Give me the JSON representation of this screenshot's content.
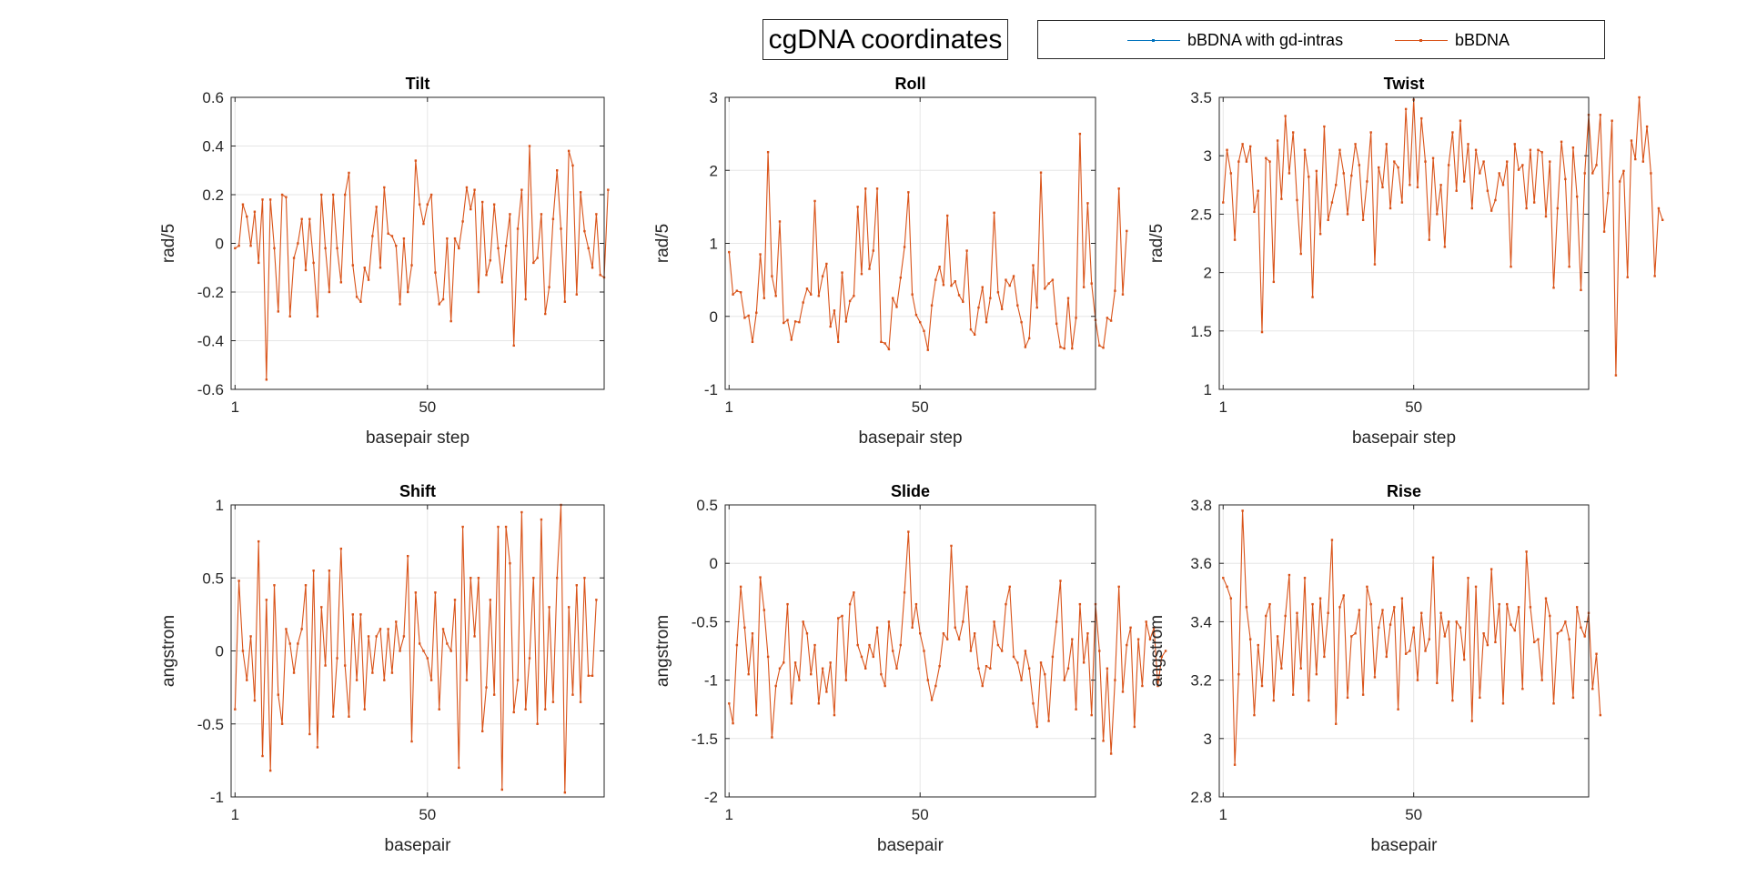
{
  "figure": {
    "title": "cgDNA coordinates",
    "legend": [
      {
        "label": "bBDNA with gd-intras",
        "color": "#0072bd"
      },
      {
        "label": "bBDNA",
        "color": "#d95319"
      }
    ]
  },
  "chart_data": [
    {
      "type": "line",
      "title": "Tilt",
      "xlabel": "basepair step",
      "ylabel": "rad/5",
      "xlim": [
        0,
        95
      ],
      "ylim": [
        -0.6,
        0.6
      ],
      "xticks": [
        1,
        50
      ],
      "yticks": [
        -0.6,
        -0.4,
        -0.2,
        0,
        0.2,
        0.4,
        0.6
      ],
      "ytick_labels": [
        "-0.6",
        "-0.4",
        "-0.2",
        "0",
        "0.2",
        "0.4",
        "0.6"
      ],
      "grid": true,
      "series": [
        {
          "name": "bBDNA",
          "color": "#d95319",
          "y": [
            -0.02,
            -0.01,
            0.16,
            0.11,
            -0.01,
            0.13,
            -0.08,
            0.18,
            -0.56,
            0.18,
            -0.02,
            -0.28,
            0.2,
            0.19,
            -0.3,
            -0.06,
            0,
            0.1,
            -0.11,
            0.1,
            -0.08,
            -0.3,
            0.2,
            -0.02,
            -0.2,
            0.2,
            -0.02,
            -0.16,
            0.2,
            0.29,
            -0.09,
            -0.22,
            -0.24,
            -0.1,
            -0.15,
            0.03,
            0.15,
            -0.1,
            0.23,
            0.04,
            0.03,
            -0.01,
            -0.25,
            0.02,
            -0.2,
            -0.09,
            0.34,
            0.16,
            0.08,
            0.16,
            0.2,
            -0.12,
            -0.25,
            -0.23,
            0.02,
            -0.32,
            0.02,
            -0.02,
            0.09,
            0.23,
            0.14,
            0.22,
            -0.2,
            0.17,
            -0.13,
            -0.07,
            0.16,
            -0.02,
            -0.16,
            -0.01,
            0.12,
            -0.42,
            0.06,
            0.22,
            -0.23,
            0.4,
            -0.08,
            -0.06,
            0.12,
            -0.29,
            -0.18,
            0.1,
            0.3,
            0.06,
            -0.24,
            0.38,
            0.32,
            -0.21,
            0.21,
            0.05,
            -0.02,
            -0.1,
            0.12,
            -0.13,
            -0.14,
            0.22
          ]
        }
      ]
    },
    {
      "type": "line",
      "title": "Roll",
      "xlabel": "basepair step",
      "ylabel": "rad/5",
      "xlim": [
        0,
        95
      ],
      "ylim": [
        -1,
        3
      ],
      "xticks": [
        1,
        50
      ],
      "yticks": [
        -1,
        0,
        1,
        2,
        3
      ],
      "ytick_labels": [
        "-1",
        "0",
        "1",
        "2",
        "3"
      ],
      "grid": true,
      "series": [
        {
          "name": "bBDNA",
          "color": "#d95319",
          "y": [
            0.88,
            0.3,
            0.35,
            0.33,
            -0.02,
            0.01,
            -0.35,
            0.05,
            0.85,
            0.25,
            2.25,
            0.55,
            0.28,
            1.3,
            -0.09,
            -0.05,
            -0.32,
            -0.07,
            -0.08,
            0.19,
            0.38,
            0.3,
            1.58,
            0.28,
            0.55,
            0.72,
            -0.14,
            0.08,
            -0.35,
            0.6,
            -0.07,
            0.21,
            0.28,
            1.5,
            0.58,
            1.75,
            0.65,
            0.9,
            1.75,
            -0.35,
            -0.37,
            -0.45,
            0.25,
            0.13,
            0.53,
            0.95,
            1.7,
            0.3,
            0.02,
            -0.08,
            -0.2,
            -0.46,
            0.15,
            0.5,
            0.68,
            0.43,
            1.38,
            0.42,
            0.48,
            0.29,
            0.2,
            0.9,
            -0.18,
            -0.25,
            0.12,
            0.4,
            -0.08,
            0.25,
            1.42,
            0.33,
            0.1,
            0.5,
            0.42,
            0.55,
            0.15,
            -0.08,
            -0.42,
            -0.3,
            0.7,
            0.12,
            1.97,
            0.38,
            0.45,
            0.5,
            -0.1,
            -0.42,
            -0.44,
            0.25,
            -0.44,
            -0.02,
            2.5,
            0.4,
            1.55,
            0.45,
            -0.05,
            -0.4,
            -0.43,
            -0.02,
            -0.06,
            0.35,
            1.75,
            0.3,
            1.17
          ]
        }
      ]
    },
    {
      "type": "line",
      "title": "Twist",
      "xlabel": "basepair step",
      "ylabel": "rad/5",
      "xlim": [
        0,
        95
      ],
      "ylim": [
        1,
        3.5
      ],
      "xticks": [
        1,
        50
      ],
      "yticks": [
        1,
        1.5,
        2,
        2.5,
        3,
        3.5
      ],
      "ytick_labels": [
        "1",
        "1.5",
        "2",
        "2.5",
        "3",
        "3.5"
      ],
      "grid": true,
      "series": [
        {
          "name": "bBDNA",
          "color": "#d95319",
          "y": [
            2.6,
            3.05,
            2.85,
            2.28,
            2.95,
            3.1,
            2.95,
            3.08,
            2.52,
            2.7,
            1.49,
            2.98,
            2.95,
            1.92,
            3.13,
            2.63,
            3.34,
            2.85,
            3.2,
            2.62,
            2.16,
            3.05,
            2.82,
            1.79,
            2.87,
            2.33,
            3.25,
            2.45,
            2.6,
            2.75,
            3.05,
            2.85,
            2.5,
            2.83,
            3.1,
            2.92,
            2.45,
            2.78,
            3.2,
            2.07,
            2.9,
            2.73,
            3.1,
            2.55,
            2.95,
            2.9,
            2.6,
            3.4,
            2.75,
            3.48,
            2.73,
            3.32,
            2.95,
            2.28,
            2.98,
            2.5,
            2.75,
            2.22,
            2.92,
            3.2,
            2.7,
            3.3,
            2.78,
            3.1,
            2.55,
            3.05,
            2.85,
            2.95,
            2.7,
            2.53,
            2.62,
            2.85,
            2.75,
            2.95,
            2.05,
            3.1,
            2.88,
            2.92,
            2.55,
            3.05,
            2.6,
            3.05,
            3.03,
            2.48,
            2.95,
            1.87,
            2.55,
            3.12,
            2.8,
            2.05,
            3.07,
            2.65,
            1.85,
            2.85,
            3.35,
            2.85,
            2.92,
            3.35,
            2.35,
            2.68,
            3.3,
            1.12,
            2.78,
            2.87,
            1.96,
            3.13,
            2.97,
            3.5,
            2.95,
            3.25,
            2.85,
            1.97,
            2.55,
            2.45
          ]
        }
      ]
    },
    {
      "type": "line",
      "title": "Shift",
      "xlabel": "basepair",
      "ylabel": "angstrom",
      "xlim": [
        0,
        95
      ],
      "ylim": [
        -1,
        1
      ],
      "xticks": [
        1,
        50
      ],
      "yticks": [
        -1,
        -0.5,
        0,
        0.5,
        1
      ],
      "ytick_labels": [
        "-1",
        "-0.5",
        "0",
        "0.5",
        "1"
      ],
      "grid": true,
      "series": [
        {
          "name": "bBDNA",
          "color": "#d95319",
          "y": [
            -0.4,
            0.48,
            0,
            -0.2,
            0.1,
            -0.34,
            0.75,
            -0.72,
            0.35,
            -0.82,
            0.45,
            -0.3,
            -0.5,
            0.15,
            0.05,
            -0.15,
            0.05,
            0.15,
            0.45,
            -0.57,
            0.55,
            -0.66,
            0.3,
            -0.1,
            0.55,
            -0.45,
            -0.05,
            0.7,
            -0.1,
            -0.45,
            0.25,
            -0.2,
            0.25,
            -0.4,
            0.1,
            -0.15,
            0.1,
            0.15,
            -0.2,
            0.15,
            -0.15,
            0.2,
            0,
            0.1,
            0.65,
            -0.62,
            0.4,
            0.05,
            0,
            -0.05,
            -0.2,
            0.4,
            -0.4,
            0.15,
            0.05,
            0,
            0.35,
            -0.8,
            0.85,
            -0.2,
            0.5,
            0.1,
            0.5,
            -0.55,
            -0.25,
            0.35,
            -0.3,
            0.85,
            -0.95,
            0.85,
            0.6,
            -0.42,
            -0.2,
            0.95,
            -0.4,
            -0.05,
            0.5,
            -0.5,
            0.9,
            -0.4,
            0.3,
            -0.35,
            0.5,
            1,
            -0.97,
            0.3,
            -0.3,
            0.45,
            -0.35,
            0.5,
            -0.17,
            -0.17,
            0.35
          ]
        }
      ]
    },
    {
      "type": "line",
      "title": "Slide",
      "xlabel": "basepair",
      "ylabel": "angstrom",
      "xlim": [
        0,
        95
      ],
      "ylim": [
        -2,
        0.5
      ],
      "xticks": [
        1,
        50
      ],
      "yticks": [
        -2,
        -1.5,
        -1,
        -0.5,
        0,
        0.5
      ],
      "ytick_labels": [
        "-2",
        "-1.5",
        "-1",
        "-0.5",
        "0",
        "0.5"
      ],
      "grid": true,
      "series": [
        {
          "name": "bBDNA",
          "color": "#d95319",
          "y": [
            -1.2,
            -1.37,
            -0.7,
            -0.2,
            -0.55,
            -0.95,
            -0.6,
            -1.3,
            -0.12,
            -0.4,
            -0.8,
            -1.49,
            -1.05,
            -0.9,
            -0.85,
            -0.35,
            -1.2,
            -0.85,
            -1,
            -0.5,
            -0.6,
            -0.95,
            -0.7,
            -1.2,
            -0.9,
            -1.1,
            -0.85,
            -1.3,
            -0.47,
            -0.45,
            -1,
            -0.35,
            -0.25,
            -0.7,
            -0.8,
            -0.9,
            -0.7,
            -0.8,
            -0.55,
            -0.95,
            -1.05,
            -0.5,
            -0.75,
            -0.9,
            -0.7,
            -0.25,
            0.27,
            -0.55,
            -0.35,
            -0.6,
            -0.75,
            -1,
            -1.17,
            -1.05,
            -0.88,
            -0.6,
            -0.65,
            0.15,
            -0.55,
            -0.65,
            -0.5,
            -0.2,
            -0.75,
            -0.6,
            -0.9,
            -1.05,
            -0.88,
            -0.9,
            -0.5,
            -0.7,
            -0.75,
            -0.35,
            -0.2,
            -0.8,
            -0.85,
            -1,
            -0.75,
            -0.9,
            -1.2,
            -1.4,
            -0.85,
            -0.95,
            -1.35,
            -0.8,
            -0.5,
            -0.15,
            -1,
            -0.9,
            -0.65,
            -1.25,
            -0.35,
            -0.85,
            -0.6,
            -1.3,
            -0.35,
            -0.75,
            -1.52,
            -0.9,
            -1.63,
            -1,
            -0.2,
            -1.1,
            -0.7,
            -0.55,
            -1.4,
            -0.65,
            -1.05,
            -0.5,
            -0.65,
            -0.55,
            -1.05,
            -0.8,
            -0.75
          ]
        }
      ]
    },
    {
      "type": "line",
      "title": "Rise",
      "xlabel": "basepair",
      "ylabel": "angstrom",
      "xlim": [
        0,
        95
      ],
      "ylim": [
        2.8,
        3.8
      ],
      "xticks": [
        1,
        50
      ],
      "yticks": [
        2.8,
        3,
        3.2,
        3.4,
        3.6,
        3.8
      ],
      "ytick_labels": [
        "2.8",
        "3",
        "3.2",
        "3.4",
        "3.6",
        "3.8"
      ],
      "grid": true,
      "series": [
        {
          "name": "bBDNA",
          "color": "#d95319",
          "y": [
            3.55,
            3.52,
            3.48,
            2.91,
            3.22,
            3.78,
            3.45,
            3.34,
            3.08,
            3.32,
            3.18,
            3.42,
            3.46,
            3.13,
            3.35,
            3.24,
            3.42,
            3.56,
            3.15,
            3.43,
            3.24,
            3.55,
            3.13,
            3.46,
            3.22,
            3.48,
            3.28,
            3.43,
            3.68,
            3.05,
            3.45,
            3.49,
            3.14,
            3.35,
            3.36,
            3.44,
            3.15,
            3.52,
            3.46,
            3.21,
            3.38,
            3.44,
            3.28,
            3.39,
            3.45,
            3.1,
            3.48,
            3.29,
            3.3,
            3.38,
            3.2,
            3.43,
            3.3,
            3.34,
            3.62,
            3.19,
            3.43,
            3.35,
            3.4,
            3.13,
            3.4,
            3.38,
            3.27,
            3.55,
            3.06,
            3.52,
            3.14,
            3.36,
            3.32,
            3.58,
            3.33,
            3.46,
            3.12,
            3.46,
            3.39,
            3.37,
            3.45,
            3.17,
            3.64,
            3.45,
            3.33,
            3.34,
            3.2,
            3.48,
            3.42,
            3.12,
            3.36,
            3.37,
            3.4,
            3.34,
            3.14,
            3.45,
            3.38,
            3.35,
            3.43,
            3.17,
            3.29,
            3.08
          ]
        }
      ]
    }
  ]
}
